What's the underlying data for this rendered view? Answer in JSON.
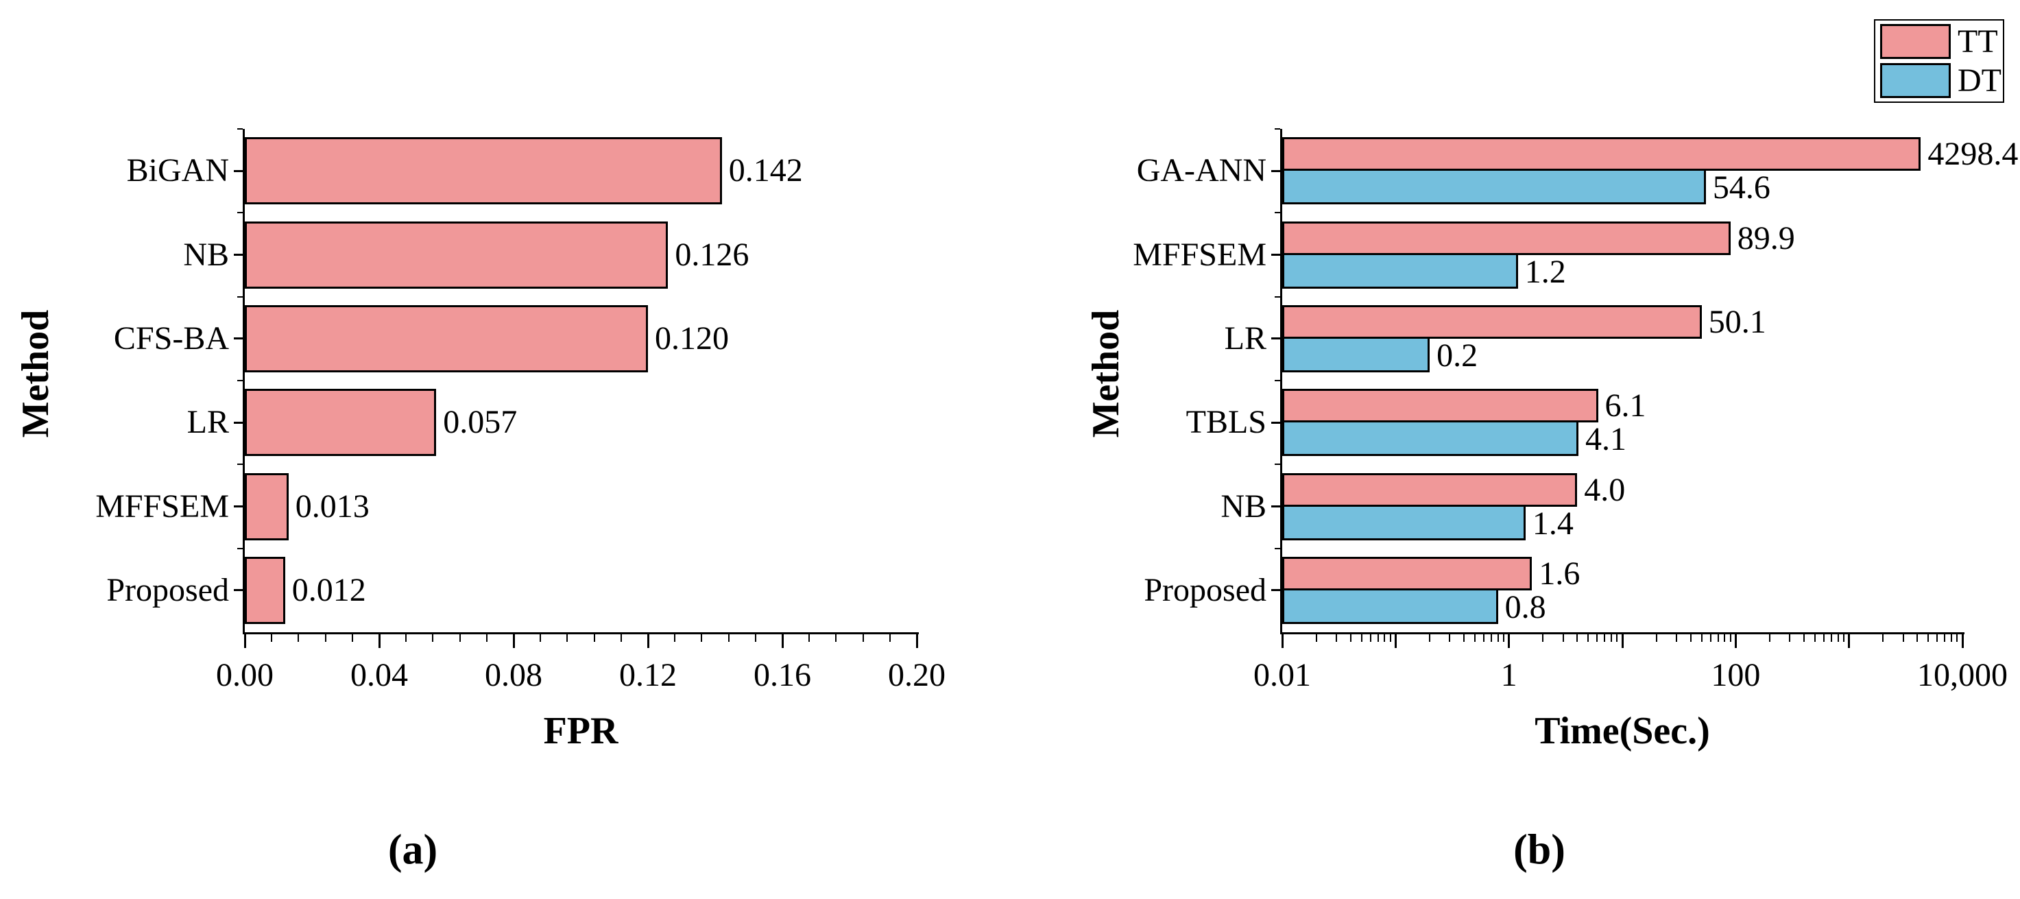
{
  "figure": {
    "background": "#ffffff"
  },
  "colors": {
    "tt": "#F09899",
    "dt": "#74BFDD",
    "bar_stroke": "#000000",
    "axis": "#000000",
    "text": "#000000"
  },
  "captions": {
    "a": "(a)",
    "b": "(b)"
  },
  "legend": {
    "position": "top-right",
    "entries": [
      {
        "label": "TT",
        "color_key": "tt"
      },
      {
        "label": "DT",
        "color_key": "dt"
      }
    ]
  },
  "chart_data": [
    {
      "id": "a",
      "type": "bar",
      "orientation": "horizontal",
      "title": "",
      "xlabel": "FPR",
      "ylabel": "Method",
      "categories": [
        "BiGAN",
        "NB",
        "CFS-BA",
        "LR",
        "MFFSEM",
        "Proposed"
      ],
      "values": [
        0.142,
        0.126,
        0.12,
        0.057,
        0.013,
        0.012
      ],
      "value_labels": [
        "0.142",
        "0.126",
        "0.120",
        "0.057",
        "0.013",
        "0.012"
      ],
      "bar_color": "tt",
      "xscale": "linear",
      "xlim": [
        0,
        0.2
      ],
      "grid": false,
      "xticks": [
        {
          "value": 0.0,
          "label": "0.00"
        },
        {
          "value": 0.04,
          "label": "0.04"
        },
        {
          "value": 0.08,
          "label": "0.08"
        },
        {
          "value": 0.12,
          "label": "0.12"
        },
        {
          "value": 0.16,
          "label": "0.16"
        },
        {
          "value": 0.2,
          "label": "0.20"
        }
      ],
      "minor_tick_step": 0.008
    },
    {
      "id": "b",
      "type": "bar",
      "orientation": "horizontal",
      "title": "",
      "xlabel": "Time(Sec.)",
      "ylabel": "Method",
      "categories": [
        "GA-ANN",
        "MFFSEM",
        "LR",
        "TBLS",
        "NB",
        "Proposed"
      ],
      "series": [
        {
          "name": "TT",
          "color_key": "tt",
          "values": [
            4298.4,
            89.9,
            50.1,
            6.1,
            4.0,
            1.6
          ],
          "value_labels": [
            "4298.4",
            "89.9",
            "50.1",
            "6.1",
            "4.0",
            "1.6"
          ]
        },
        {
          "name": "DT",
          "color_key": "dt",
          "values": [
            54.6,
            1.2,
            0.2,
            4.1,
            1.4,
            0.8
          ],
          "value_labels": [
            "54.6",
            "1.2",
            "0.2",
            "4.1",
            "1.4",
            "0.8"
          ]
        }
      ],
      "xscale": "log",
      "xlim": [
        0.01,
        10000
      ],
      "grid": false,
      "legend_position": "top-right",
      "xticks": [
        {
          "value": 0.01,
          "label": "0.01"
        },
        {
          "value": 1,
          "label": "1"
        },
        {
          "value": 100,
          "label": "100"
        },
        {
          "value": 10000,
          "label": "10,000"
        }
      ],
      "decade_ticks": [
        0.1,
        10,
        1000
      ]
    }
  ]
}
